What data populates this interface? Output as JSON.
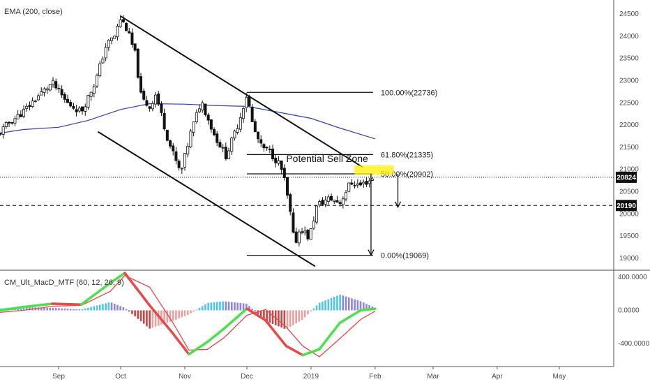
{
  "studies": {
    "main_label": "EMA (200, close)",
    "macd_label": "CM_Ult_MacD_MTF (60, 12, 26, 9)"
  },
  "colors": {
    "up": "#111111",
    "down": "#111111",
    "ema": "#2f3fb7",
    "macd_up": "#4ddf4d",
    "macd_down": "#e84848",
    "signal": "#e84848",
    "hist_pos_strong": "#4fc3e8",
    "hist_pos_weak": "#8e86d8",
    "hist_neg_strong": "#c94444",
    "hist_neg_weak": "#e8a0a0",
    "sell_zone": "#fff200",
    "price_badge": "#111111"
  },
  "price_labels": {
    "current": "20824",
    "level": "20190"
  },
  "annotations": {
    "sell_zone_text": "Potential Sell Zone",
    "fib": [
      {
        "label": "100.00%(22736)",
        "value": 22736
      },
      {
        "label": "61.80%(21335)",
        "value": 21335
      },
      {
        "label": "50.00%(20902)",
        "value": 20902
      },
      {
        "label": "0.00%(19069)",
        "value": 19069
      }
    ]
  },
  "chart_data": [
    {
      "type": "candlestick",
      "title": "",
      "x_axis": {
        "labels": [
          "Sep",
          "Oct",
          "Nov",
          "Dec",
          "2019",
          "Feb",
          "Mar",
          "Apr",
          "May"
        ],
        "dates": [
          "2018-09-01",
          "2018-10-01",
          "2018-11-01",
          "2018-12-01",
          "2019-01-01",
          "2019-02-01",
          "2019-03-01",
          "2019-04-01",
          "2019-05-01"
        ]
      },
      "y_axis": {
        "ticks": [
          "19000",
          "19500",
          "20000",
          "20500",
          "21000",
          "21500",
          "22000",
          "22500",
          "23000",
          "23500",
          "24000",
          "24500"
        ],
        "ylim": [
          18900,
          24650
        ]
      },
      "ohlc_anchors": [
        {
          "date": "2018-08-01",
          "close": 21700
        },
        {
          "date": "2018-08-08",
          "close": 22050
        },
        {
          "date": "2018-08-15",
          "close": 22300
        },
        {
          "date": "2018-08-22",
          "close": 22650
        },
        {
          "date": "2018-08-29",
          "close": 22950
        },
        {
          "date": "2018-09-05",
          "close": 22500
        },
        {
          "date": "2018-09-12",
          "close": 22300
        },
        {
          "date": "2018-09-19",
          "close": 23000
        },
        {
          "date": "2018-09-24",
          "close": 23800
        },
        {
          "date": "2018-09-28",
          "close": 24000
        },
        {
          "date": "2018-10-01",
          "close": 24400
        },
        {
          "date": "2018-10-04",
          "close": 24150
        },
        {
          "date": "2018-10-08",
          "close": 23600
        },
        {
          "date": "2018-10-11",
          "close": 22600
        },
        {
          "date": "2018-10-15",
          "close": 22400
        },
        {
          "date": "2018-10-18",
          "close": 22700
        },
        {
          "date": "2018-10-24",
          "close": 21650
        },
        {
          "date": "2018-10-30",
          "close": 20900
        },
        {
          "date": "2018-11-04",
          "close": 21850
        },
        {
          "date": "2018-11-09",
          "close": 22550
        },
        {
          "date": "2018-11-15",
          "close": 21800
        },
        {
          "date": "2018-11-21",
          "close": 21300
        },
        {
          "date": "2018-11-27",
          "close": 22050
        },
        {
          "date": "2018-12-01",
          "close": 22700
        },
        {
          "date": "2018-12-04",
          "close": 21950
        },
        {
          "date": "2018-12-08",
          "close": 21500
        },
        {
          "date": "2018-12-12",
          "close": 21400
        },
        {
          "date": "2018-12-17",
          "close": 21100
        },
        {
          "date": "2018-12-19",
          "close": 20800
        },
        {
          "date": "2018-12-22",
          "close": 20000
        },
        {
          "date": "2018-12-24",
          "close": 19300
        },
        {
          "date": "2018-12-27",
          "close": 19700
        },
        {
          "date": "2018-12-31",
          "close": 19450
        },
        {
          "date": "2019-01-04",
          "close": 20200
        },
        {
          "date": "2019-01-10",
          "close": 20350
        },
        {
          "date": "2019-01-15",
          "close": 20250
        },
        {
          "date": "2019-01-20",
          "close": 20700
        },
        {
          "date": "2019-01-25",
          "close": 20650
        },
        {
          "date": "2019-02-01",
          "close": 20824
        }
      ],
      "series": [
        {
          "name": "EMA (200, close)",
          "points": [
            {
              "x": "2018-08-01",
              "y": 21800
            },
            {
              "x": "2018-08-15",
              "y": 21900
            },
            {
              "x": "2018-09-01",
              "y": 21950
            },
            {
              "x": "2018-09-15",
              "y": 22100
            },
            {
              "x": "2018-10-01",
              "y": 22350
            },
            {
              "x": "2018-10-15",
              "y": 22480
            },
            {
              "x": "2018-11-01",
              "y": 22470
            },
            {
              "x": "2018-11-15",
              "y": 22440
            },
            {
              "x": "2018-12-01",
              "y": 22420
            },
            {
              "x": "2018-12-15",
              "y": 22300
            },
            {
              "x": "2019-01-01",
              "y": 22150
            },
            {
              "x": "2019-01-15",
              "y": 21930
            },
            {
              "x": "2019-02-01",
              "y": 21690
            }
          ]
        }
      ],
      "trendlines": [
        {
          "from": {
            "x": "2018-10-01",
            "y": 24450
          },
          "to": {
            "x": "2019-01-26",
            "y": 21050
          }
        },
        {
          "from": {
            "x": "2018-09-20",
            "y": 21850
          },
          "to": {
            "x": "2019-01-03",
            "y": 18820
          }
        }
      ],
      "fib_levels": [
        {
          "label": "100.00%(22736)",
          "value": 22736
        },
        {
          "label": "61.80%(21335)",
          "value": 21335
        },
        {
          "label": "50.00%(20902)",
          "value": 20902
        },
        {
          "label": "0.00%(19069)",
          "value": 19069
        }
      ],
      "sell_zone": {
        "text": "Potential Sell Zone",
        "y_range": [
          20880,
          21090
        ],
        "x_range": [
          "2019-01-22",
          "2019-02-10"
        ]
      },
      "horizontal_levels": [
        20824,
        20190
      ],
      "projection_arrows": [
        {
          "x": "2019-01-30",
          "from": 20902,
          "to": 19069
        },
        {
          "x": "2019-02-12",
          "from": 20902,
          "to": 20150
        }
      ],
      "grid": false,
      "legend": "top-left"
    },
    {
      "type": "line",
      "title": "CM_Ult_MacD_MTF (60, 12, 26, 9)",
      "y_axis": {
        "ticks": [
          "400.0000",
          "0.0000",
          "-400.0000"
        ],
        "ylim": [
          -650,
          500
        ]
      },
      "series": [
        {
          "name": "MACD",
          "points": [
            {
              "x": "2018-08-01",
              "y": -10
            },
            {
              "x": "2018-08-15",
              "y": 40
            },
            {
              "x": "2018-08-29",
              "y": 80
            },
            {
              "x": "2018-09-12",
              "y": 70
            },
            {
              "x": "2018-09-26",
              "y": 330
            },
            {
              "x": "2018-10-03",
              "y": 450
            },
            {
              "x": "2018-10-15",
              "y": 60
            },
            {
              "x": "2018-10-26",
              "y": -270
            },
            {
              "x": "2018-11-03",
              "y": -530
            },
            {
              "x": "2018-11-12",
              "y": -380
            },
            {
              "x": "2018-11-20",
              "y": -220
            },
            {
              "x": "2018-12-01",
              "y": 20
            },
            {
              "x": "2018-12-10",
              "y": -120
            },
            {
              "x": "2018-12-20",
              "y": -430
            },
            {
              "x": "2018-12-28",
              "y": -540
            },
            {
              "x": "2019-01-05",
              "y": -470
            },
            {
              "x": "2019-01-15",
              "y": -150
            },
            {
              "x": "2019-01-25",
              "y": 0
            },
            {
              "x": "2019-02-01",
              "y": 20
            }
          ]
        },
        {
          "name": "Signal",
          "points": [
            {
              "x": "2018-08-01",
              "y": -30
            },
            {
              "x": "2018-08-15",
              "y": 0
            },
            {
              "x": "2018-08-29",
              "y": 50
            },
            {
              "x": "2018-09-12",
              "y": 60
            },
            {
              "x": "2018-09-26",
              "y": 230
            },
            {
              "x": "2018-10-03",
              "y": 420
            },
            {
              "x": "2018-10-15",
              "y": 280
            },
            {
              "x": "2018-10-26",
              "y": -140
            },
            {
              "x": "2018-11-03",
              "y": -480
            },
            {
              "x": "2018-11-12",
              "y": -470
            },
            {
              "x": "2018-11-20",
              "y": -330
            },
            {
              "x": "2018-12-01",
              "y": -60
            },
            {
              "x": "2018-12-10",
              "y": 10
            },
            {
              "x": "2018-12-20",
              "y": -200
            },
            {
              "x": "2018-12-28",
              "y": -430
            },
            {
              "x": "2019-01-05",
              "y": -560
            },
            {
              "x": "2019-01-15",
              "y": -340
            },
            {
              "x": "2019-01-25",
              "y": -110
            },
            {
              "x": "2019-02-01",
              "y": -10
            }
          ]
        }
      ],
      "histogram": [
        {
          "x": "2018-08-01",
          "y": 20
        },
        {
          "x": "2018-08-15",
          "y": 40
        },
        {
          "x": "2018-08-29",
          "y": 30
        },
        {
          "x": "2018-09-12",
          "y": 10
        },
        {
          "x": "2018-09-26",
          "y": 100
        },
        {
          "x": "2018-10-03",
          "y": 30
        },
        {
          "x": "2018-10-15",
          "y": -220
        },
        {
          "x": "2018-10-26",
          "y": -130
        },
        {
          "x": "2018-11-03",
          "y": -50
        },
        {
          "x": "2018-11-12",
          "y": 90
        },
        {
          "x": "2018-11-20",
          "y": 110
        },
        {
          "x": "2018-12-01",
          "y": 80
        },
        {
          "x": "2018-12-10",
          "y": -130
        },
        {
          "x": "2018-12-20",
          "y": -230
        },
        {
          "x": "2018-12-28",
          "y": -110
        },
        {
          "x": "2019-01-05",
          "y": 90
        },
        {
          "x": "2019-01-15",
          "y": 190
        },
        {
          "x": "2019-01-25",
          "y": 110
        },
        {
          "x": "2019-02-01",
          "y": 30
        }
      ],
      "grid": false,
      "legend": "top-left"
    }
  ]
}
